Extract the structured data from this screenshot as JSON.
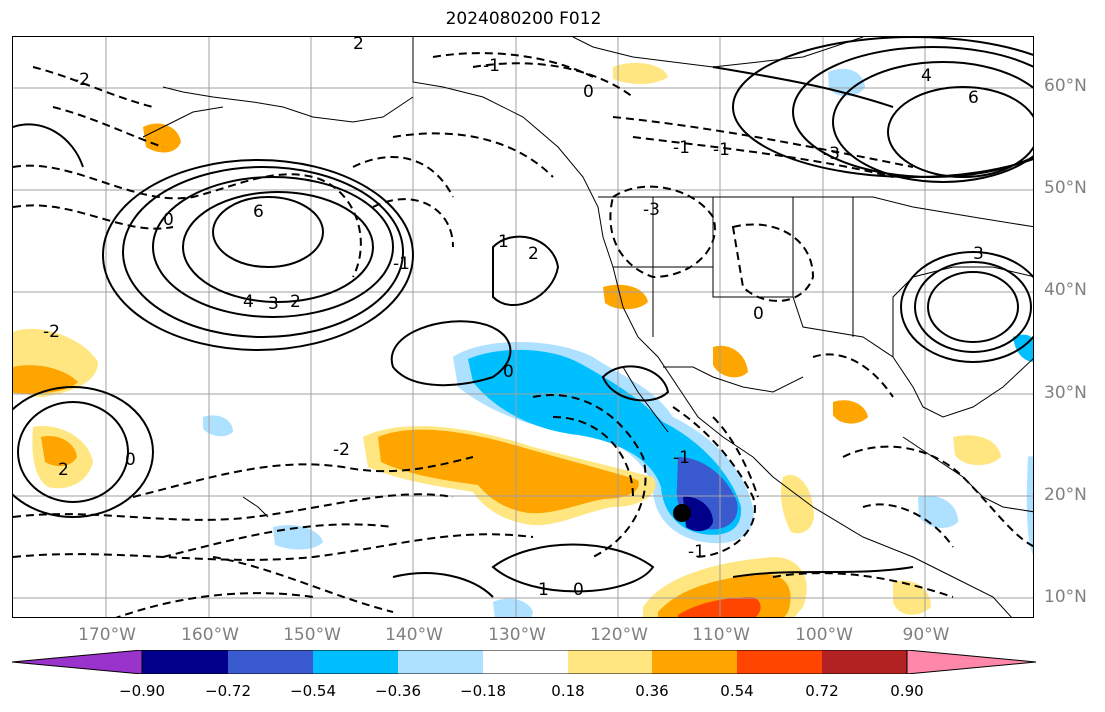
{
  "title": "2024080200 F012",
  "lat_labels": [
    "60°N",
    "50°N",
    "40°N",
    "30°N",
    "20°N",
    "10°N"
  ],
  "lon_labels": [
    "170°W",
    "160°W",
    "150°W",
    "140°W",
    "130°W",
    "120°W",
    "110°W",
    "100°W",
    "90°W"
  ],
  "contour_labels": [
    "6",
    "4",
    "3",
    "2",
    "-1",
    "2",
    "1",
    "-3",
    "2",
    "-1",
    "0",
    "0",
    "1",
    "-2",
    "0",
    "6",
    "4",
    "3",
    "-2",
    "0",
    "-1",
    "-2",
    "0",
    "-1",
    "2",
    "-3",
    "-1",
    "-1",
    "0"
  ],
  "colorbar": {
    "colors": [
      "#9933cc",
      "#00008b",
      "#3a5bd0",
      "#00bfff",
      "#aee0ff",
      "#ffffff",
      "#ffe680",
      "#ffa500",
      "#ff4500",
      "#b22222",
      "#ff88aa"
    ],
    "tick_labels": [
      "−0.90",
      "−0.72",
      "−0.54",
      "−0.36",
      "−0.18",
      "0.18",
      "0.36",
      "0.54",
      "0.72",
      "0.90"
    ]
  },
  "marker": {
    "label": "",
    "lon": -114.5,
    "lat": 18.2
  }
}
